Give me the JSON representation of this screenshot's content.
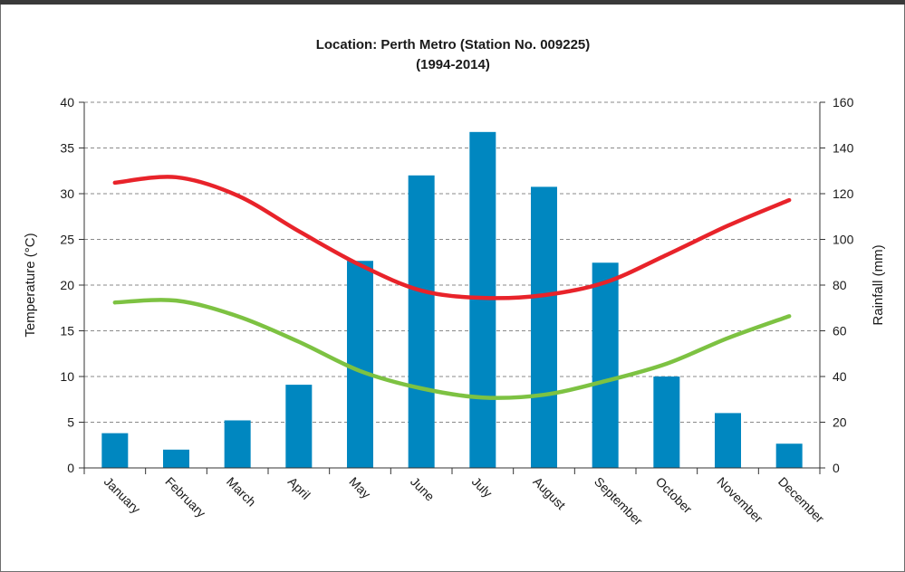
{
  "chart_data": {
    "type": "bar",
    "title": "Location: Perth Metro (Station No. 009225)",
    "subtitle": "(1994-2014)",
    "categories": [
      "January",
      "February",
      "March",
      "April",
      "May",
      "June",
      "July",
      "August",
      "September",
      "October",
      "November",
      "December"
    ],
    "y_left": {
      "label": "Temperature (°C)",
      "lim": [
        0,
        40
      ],
      "ticks": [
        0,
        5,
        10,
        15,
        20,
        25,
        30,
        35,
        40
      ]
    },
    "y_right": {
      "label": "Rainfall (mm)",
      "lim": [
        0,
        160
      ],
      "ticks": [
        0,
        20,
        40,
        60,
        80,
        100,
        120,
        140,
        160
      ]
    },
    "grid": true,
    "series": [
      {
        "kind": "bar",
        "axis": "right",
        "color": "#0087c0",
        "values": [
          15.2,
          8.0,
          20.8,
          36.4,
          90.6,
          128.0,
          147.0,
          123.0,
          89.8,
          40.0,
          24.0,
          10.6
        ]
      },
      {
        "kind": "line",
        "axis": "left",
        "color": "#e8232a",
        "values": [
          31.2,
          31.8,
          29.8,
          25.9,
          22.2,
          19.4,
          18.6,
          18.9,
          20.3,
          23.3,
          26.5,
          29.3
        ]
      },
      {
        "kind": "line",
        "axis": "left",
        "color": "#7dc242",
        "values": [
          18.1,
          18.3,
          16.6,
          13.8,
          10.6,
          8.7,
          7.7,
          8.0,
          9.5,
          11.4,
          14.2,
          16.6
        ]
      }
    ]
  }
}
